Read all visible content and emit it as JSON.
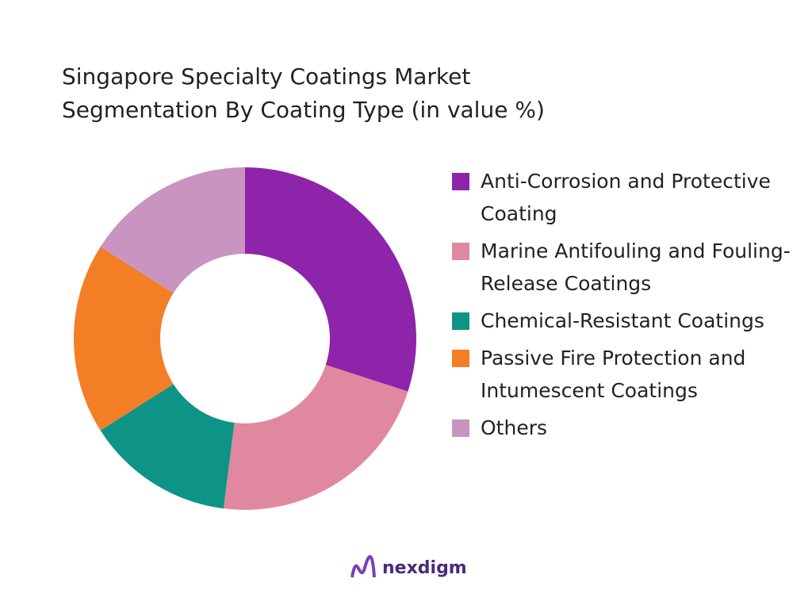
{
  "chart_data": {
    "type": "donut",
    "title": "Singapore Specialty Coatings Market Segmentation By Coating Type (in value %)",
    "categories": [
      "Anti-Corrosion and Protective Coating",
      "Marine Antifouling and Fouling-Release Coatings",
      "Chemical-Resistant Coatings",
      "Passive Fire Protection and Intumescent Coatings",
      "Others"
    ],
    "values": [
      30,
      22,
      14,
      18,
      16
    ],
    "colors": [
      "#8e24aa",
      "#e088a0",
      "#0e9486",
      "#f37e26",
      "#c994bf"
    ]
  },
  "logo": "nexdigm"
}
